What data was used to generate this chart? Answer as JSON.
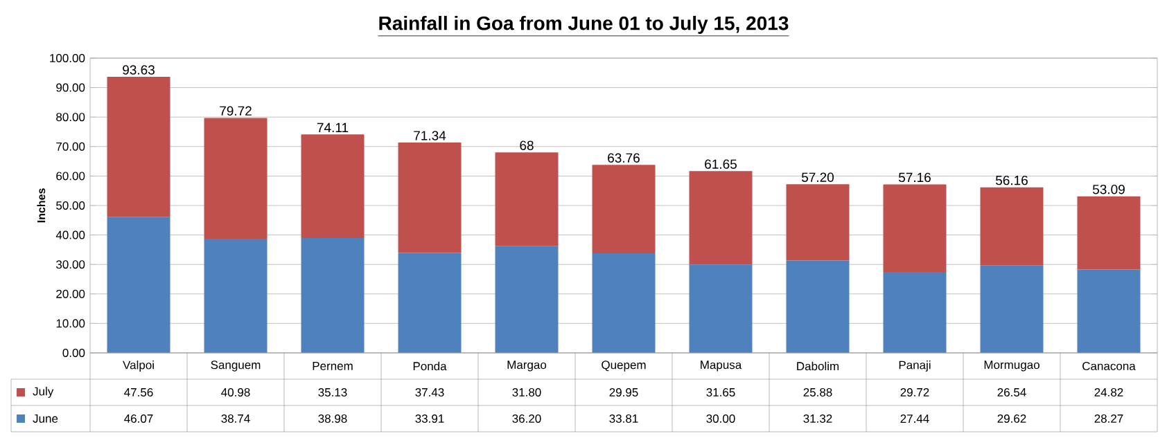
{
  "chart_data": {
    "type": "bar",
    "stacked": true,
    "title": "Rainfall in Goa from June 01 to July 15, 2013",
    "ylabel": "Inches",
    "categories": [
      "Valpoi",
      "Sanguem",
      "Pernem",
      "Ponda",
      "Margao",
      "Quepem",
      "Mapusa",
      "Dabolim",
      "Panaji",
      "Mormugao",
      "Canacona"
    ],
    "series": [
      {
        "name": "June",
        "color": "#4f81bd",
        "values": [
          46.07,
          38.74,
          38.98,
          33.91,
          36.2,
          33.81,
          30.0,
          31.32,
          27.44,
          29.62,
          28.27
        ],
        "value_labels": [
          "46.07",
          "38.74",
          "38.98",
          "33.91",
          "36.20",
          "33.81",
          "30.00",
          "31.32",
          "27.44",
          "29.62",
          "28.27"
        ]
      },
      {
        "name": "July",
        "color": "#c0504d",
        "values": [
          47.56,
          40.98,
          35.13,
          37.43,
          31.8,
          29.95,
          31.65,
          25.88,
          29.72,
          26.54,
          24.82
        ],
        "value_labels": [
          "47.56",
          "40.98",
          "35.13",
          "37.43",
          "31.80",
          "29.95",
          "31.65",
          "25.88",
          "29.72",
          "26.54",
          "24.82"
        ]
      }
    ],
    "totals": [
      "93.63",
      "79.72",
      "74.11",
      "71.34",
      "68",
      "63.76",
      "61.65",
      "57.20",
      "57.16",
      "56.16",
      "53.09"
    ],
    "ylim": [
      0,
      100
    ],
    "yticks": [
      {
        "value": 0,
        "label": "0.00"
      },
      {
        "value": 10,
        "label": "10.00"
      },
      {
        "value": 20,
        "label": "20.00"
      },
      {
        "value": 30,
        "label": "30.00"
      },
      {
        "value": 40,
        "label": "40.00"
      },
      {
        "value": 50,
        "label": "50.00"
      },
      {
        "value": 60,
        "label": "60.00"
      },
      {
        "value": 70,
        "label": "70.00"
      },
      {
        "value": 80,
        "label": "80.00"
      },
      {
        "value": 90,
        "label": "90.00"
      },
      {
        "value": 100,
        "label": "100.00"
      }
    ],
    "grid": "y",
    "legend": "bottom left"
  }
}
